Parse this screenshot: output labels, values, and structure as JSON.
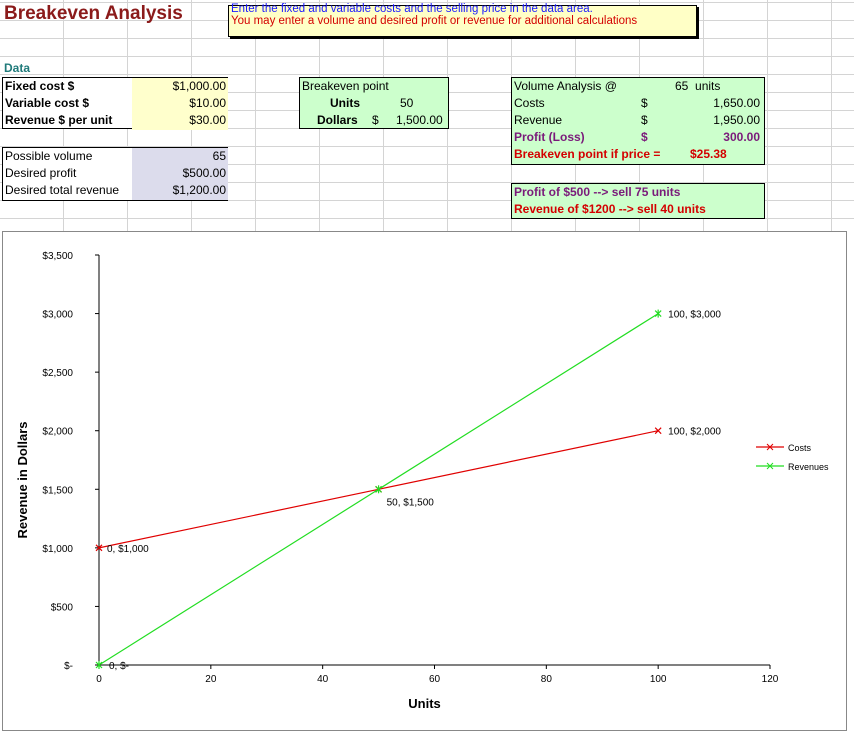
{
  "title": "Breakeven Analysis",
  "note": {
    "line1": "Enter the fixed and variable costs and the selling price in the data area.",
    "line2": "You may enter a volume and desired profit or revenue for additional calculations"
  },
  "data_label": "Data",
  "inputs": [
    {
      "label": "Fixed cost $",
      "value": "$1,000.00"
    },
    {
      "label": "Variable cost $",
      "value": "$10.00"
    },
    {
      "label": "Revenue $ per unit",
      "value": "$30.00"
    }
  ],
  "optional": [
    {
      "label": "Possible volume",
      "value": "65"
    },
    {
      "label": "Desired profit",
      "value": "$500.00"
    },
    {
      "label": "Desired total revenue",
      "value": "$1,200.00"
    }
  ],
  "breakeven": {
    "header": "Breakeven point",
    "units_label": "Units",
    "units_value": "50",
    "dollars_label": "Dollars",
    "dollars_symbol": "$",
    "dollars_value": "1,500.00"
  },
  "volume": {
    "header": "Volume Analysis @",
    "volume_value": "65",
    "volume_unit": "units",
    "rows": [
      {
        "label": "Costs",
        "symbol": "$",
        "value": "1,650.00"
      },
      {
        "label": "Revenue",
        "symbol": "$",
        "value": "1,950.00"
      },
      {
        "label": "Profit (Loss)",
        "symbol": "$",
        "value": "300.00"
      }
    ],
    "breakeven_price_label": "Breakeven point if price =",
    "breakeven_price_value": "$25.38"
  },
  "targets": {
    "profit": "Profit of $500  --> sell 75 units",
    "revenue": "Revenue of $1200  --> sell 40 units"
  },
  "chart_data": {
    "type": "line",
    "xlabel": "Units",
    "ylabel": "Revenue in Dollars",
    "xlim": [
      0,
      120
    ],
    "ylim": [
      0,
      3500
    ],
    "x_ticks": [
      "0",
      "20",
      "40",
      "60",
      "80",
      "100",
      "120"
    ],
    "y_ticks": [
      "$-",
      "$500",
      "$1,000",
      "$1,500",
      "$2,000",
      "$2,500",
      "$3,000",
      "$3,500"
    ],
    "legend_position": "right",
    "series": [
      {
        "name": "Costs",
        "color": "#e00000",
        "marker": "x",
        "points": [
          {
            "x": 0,
            "y": 1000
          },
          {
            "x": 50,
            "y": 1500
          },
          {
            "x": 100,
            "y": 2000
          }
        ],
        "labels": [
          "0, $1,000",
          "50, $1,500",
          "100, $2,000"
        ]
      },
      {
        "name": "Revenues",
        "color": "#22dd22",
        "marker": "*",
        "points": [
          {
            "x": 0,
            "y": 0
          },
          {
            "x": 50,
            "y": 1500
          },
          {
            "x": 100,
            "y": 3000
          }
        ],
        "labels": [
          "0, $-",
          "",
          "100, $3,000"
        ]
      }
    ]
  }
}
